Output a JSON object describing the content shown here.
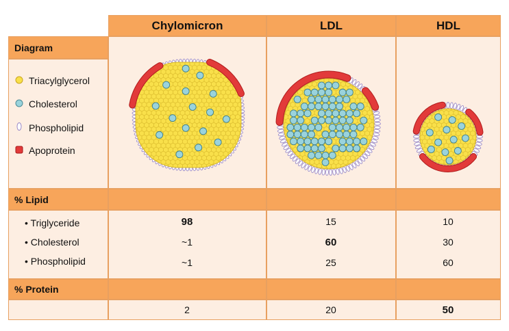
{
  "columns": [
    "Chylomicron",
    "LDL",
    "HDL"
  ],
  "rows": {
    "diagram": "Diagram",
    "lipid": "% Lipid",
    "protein": "% Protein"
  },
  "legend": [
    {
      "label": "Triacylglycerol",
      "icon": "triacylglycerol-icon",
      "color": "#f9e04a"
    },
    {
      "label": "Cholesterol",
      "icon": "cholesterol-icon",
      "color": "#9ad3dc"
    },
    {
      "label": "Phospholipid",
      "icon": "phospholipid-icon",
      "color": "#ffffff"
    },
    {
      "label": "Apoprotein",
      "icon": "apoprotein-icon",
      "color": "#e23a3a"
    }
  ],
  "lipid_items": [
    {
      "label": "• Triglyceride",
      "values": [
        "98",
        "15",
        "10"
      ],
      "bold": [
        true,
        false,
        false
      ]
    },
    {
      "label": "• Cholesterol",
      "values": [
        "~1",
        "60",
        "30"
      ],
      "bold": [
        false,
        true,
        false
      ]
    },
    {
      "label": "• Phospholipid",
      "values": [
        "~1",
        "25",
        "60"
      ],
      "bold": [
        false,
        false,
        false
      ]
    }
  ],
  "protein_values": [
    "2",
    "20",
    "50"
  ],
  "protein_bold": [
    false,
    false,
    true
  ],
  "colors": {
    "header": "#f7a55a",
    "body": "#fdeee2",
    "border": "#e8a060",
    "triacylglycerol": "#f9e04a",
    "cholesterol": "#9ad3dc",
    "apoprotein": "#e23a3a",
    "phospholipid_stroke": "#9a8ac8"
  }
}
